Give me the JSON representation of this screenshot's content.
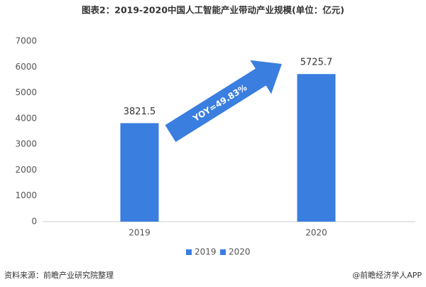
{
  "chart_data": {
    "type": "bar",
    "title": "图表2：2019-2020中国人工智能产业带动产业规模(单位：亿元)",
    "categories": [
      "2019",
      "2020"
    ],
    "series": [
      {
        "name": "2019",
        "color": "#3a7ee0",
        "values": [
          3821.5,
          null
        ]
      },
      {
        "name": "2020",
        "color": "#3a7ee0",
        "values": [
          null,
          5725.7
        ]
      }
    ],
    "ylim": [
      0,
      7000
    ],
    "yticks": [
      0,
      1000,
      2000,
      3000,
      4000,
      5000,
      6000,
      7000
    ],
    "grid": false,
    "legend": "bottom",
    "annotation": "YOY=49.83%",
    "source": "资料来源：前瞻产业研究院整理",
    "credit": "@前瞻经济学人APP"
  }
}
